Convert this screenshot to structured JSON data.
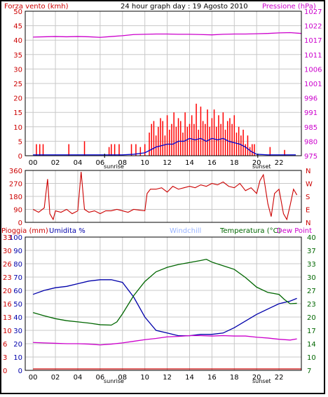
{
  "header": {
    "left_title": "Forza vento (kmh)",
    "center_title": "24 hour graph day : 19 Agosto 2010",
    "right_title": "Pressione (hPa)"
  },
  "markers": {
    "sunrise": "sunrise",
    "sunset": "sunset"
  },
  "colors": {
    "wind": "#ff0000",
    "gust": "#ff0000",
    "wind_avg": "#0000cc",
    "pressure": "#cc00cc",
    "direction": "#cc0000",
    "rain": "#cc0000",
    "humidity": "#0000aa",
    "windchill": "#9ab4ff",
    "temperature": "#006600",
    "dewpoint": "#cc00cc",
    "grid": "#c8c8c8"
  },
  "chart_data": [
    {
      "type": "bar",
      "name": "wind-pressure-panel",
      "title": "24 hour graph day : 19 Agosto 2010",
      "ylabel_left": "Forza vento (kmh)",
      "ylabel_right": "Pressione (hPa)",
      "ylim_left": [
        0,
        50
      ],
      "yticks_left": [
        "0",
        "5",
        "10",
        "15",
        "20",
        "25",
        "30",
        "35",
        "40",
        "45",
        "50"
      ],
      "ylim_right": [
        975,
        1027
      ],
      "yticks_right": [
        "975",
        "980",
        "985",
        "991",
        "996",
        "1001",
        "1006",
        "1011",
        "1017",
        "1022",
        "1027"
      ],
      "x_hours": [
        "00",
        "02",
        "04",
        "06",
        "08",
        "10",
        "12",
        "14",
        "16",
        "18",
        "20",
        "22"
      ],
      "sunrise_hour": 6.4,
      "sunset_hour": 20.1,
      "series": [
        {
          "name": "gust",
          "x": [
            0.3,
            0.6,
            0.9,
            3.2,
            4.6,
            6.8,
            7.0,
            7.3,
            7.7,
            8.8,
            9.2,
            9.6,
            10.0,
            10.4,
            10.6,
            10.8,
            11.0,
            11.2,
            11.4,
            11.6,
            11.8,
            12.0,
            12.2,
            12.4,
            12.6,
            12.8,
            13.0,
            13.2,
            13.4,
            13.6,
            13.8,
            14.0,
            14.2,
            14.4,
            14.6,
            14.8,
            15.0,
            15.2,
            15.4,
            15.6,
            15.8,
            16.0,
            16.2,
            16.4,
            16.6,
            16.8,
            17.0,
            17.2,
            17.4,
            17.6,
            17.8,
            18.0,
            18.2,
            18.4,
            18.6,
            18.8,
            19.0,
            19.2,
            19.4,
            19.6,
            19.8,
            21.2,
            22.5
          ],
          "values": [
            4,
            4,
            4,
            4,
            5,
            3,
            4,
            4,
            4,
            4,
            4,
            3,
            4,
            8,
            11,
            12,
            7,
            10,
            13,
            12,
            7,
            14,
            9,
            11,
            15,
            10,
            13,
            12,
            8,
            15,
            10,
            11,
            14,
            11,
            18,
            9,
            17,
            12,
            11,
            16,
            10,
            13,
            16,
            10,
            14,
            11,
            15,
            9,
            12,
            13,
            11,
            14,
            8,
            10,
            7,
            9,
            4,
            7,
            3,
            4,
            4,
            3,
            2
          ]
        },
        {
          "name": "average",
          "x": [
            0,
            2,
            4,
            6,
            8,
            9,
            10,
            10.5,
            11,
            11.5,
            12,
            12.5,
            13,
            13.5,
            14,
            14.5,
            15,
            15.5,
            16,
            16.5,
            17,
            17.5,
            18,
            18.5,
            19,
            19.5,
            20,
            21,
            22,
            23.5
          ],
          "values": [
            0.3,
            0.3,
            0.3,
            0.3,
            0.3,
            0.5,
            1,
            2,
            3,
            3.5,
            4,
            4,
            5,
            5,
            6,
            5.5,
            6,
            5,
            6,
            5.5,
            6,
            5,
            4.5,
            4,
            3,
            1.5,
            0.5,
            0.3,
            0.3,
            0.3
          ]
        },
        {
          "name": "pressure",
          "x": [
            0,
            1,
            2,
            3,
            4,
            5,
            6,
            7,
            8,
            9,
            10,
            11,
            12,
            13,
            14,
            15,
            16,
            17,
            18,
            19,
            20,
            21,
            22,
            23,
            24
          ],
          "values": [
            1017.7,
            1017.8,
            1017.9,
            1017.8,
            1017.9,
            1017.8,
            1017.6,
            1017.9,
            1018.2,
            1018.6,
            1018.7,
            1018.8,
            1018.8,
            1018.7,
            1018.7,
            1018.6,
            1018.5,
            1018.7,
            1018.8,
            1018.8,
            1018.9,
            1019.0,
            1019.2,
            1019.3,
            1019.0
          ]
        }
      ]
    },
    {
      "type": "line",
      "name": "wind-direction-panel",
      "ylim": [
        0,
        360
      ],
      "yticks_left": [
        "0",
        "90",
        "180",
        "270",
        "360"
      ],
      "yticks_right": [
        "N",
        "E",
        "S",
        "W",
        "N"
      ],
      "series": [
        {
          "name": "direction",
          "x": [
            0,
            0.5,
            1,
            1.3,
            1.5,
            1.8,
            2,
            2.5,
            3,
            3.5,
            4,
            4.3,
            4.6,
            5,
            5.5,
            6,
            6.5,
            7,
            7.5,
            8,
            8.5,
            9,
            9.5,
            10,
            10.2,
            10.5,
            11,
            11.5,
            12,
            12.5,
            13,
            13.5,
            14,
            14.5,
            15,
            15.5,
            16,
            16.5,
            17,
            17.5,
            18,
            18.5,
            19,
            19.5,
            20,
            20.3,
            20.6,
            21,
            21.3,
            21.6,
            22,
            22.4,
            22.7,
            23,
            23.3,
            23.6
          ],
          "values": [
            90,
            70,
            100,
            300,
            60,
            20,
            80,
            70,
            90,
            60,
            80,
            350,
            90,
            70,
            80,
            60,
            80,
            80,
            90,
            80,
            70,
            90,
            85,
            80,
            200,
            230,
            230,
            240,
            210,
            250,
            230,
            240,
            250,
            240,
            260,
            250,
            270,
            260,
            280,
            250,
            240,
            270,
            220,
            240,
            200,
            290,
            330,
            130,
            40,
            200,
            230,
            60,
            20,
            120,
            230,
            190
          ]
        }
      ]
    },
    {
      "type": "line",
      "name": "weather-panel",
      "ylabel_rain": "Pioggia (mm)",
      "ylabel_humidity": "Umidita %",
      "legend": [
        "Windchill",
        "Temperatura (°C)",
        "Dew Point"
      ],
      "ylim_left": [
        0,
        100
      ],
      "yticks_left": [
        "0",
        "10",
        "20",
        "30",
        "40",
        "50",
        "60",
        "70",
        "80",
        "90",
        "100"
      ],
      "yticks_rain": [
        "0",
        "3",
        "6",
        "10",
        "13",
        "16",
        "20",
        "23",
        "26",
        "30",
        "33"
      ],
      "ylim_right": [
        7,
        40
      ],
      "yticks_right": [
        "7",
        "10",
        "14",
        "17",
        "20",
        "23",
        "27",
        "30",
        "33",
        "37",
        "40"
      ],
      "series": [
        {
          "name": "Umidita %",
          "x": [
            0,
            1,
            2,
            3,
            4,
            5,
            6,
            7,
            8,
            9,
            10,
            11,
            12,
            13,
            14,
            15,
            16,
            17,
            18,
            19,
            20,
            21,
            22,
            23,
            23.6
          ],
          "values": [
            57,
            60,
            62,
            63,
            65,
            67,
            68,
            68,
            66,
            55,
            40,
            30,
            28,
            26,
            26,
            27,
            27,
            28,
            32,
            37,
            42,
            46,
            50,
            52,
            54
          ]
        },
        {
          "name": "Temperatura (°C)",
          "x": [
            0,
            1,
            2,
            3,
            4,
            5,
            6,
            7,
            7.5,
            8,
            9,
            10,
            11,
            12,
            13,
            14,
            15,
            15.5,
            16,
            17,
            18,
            19,
            20,
            21,
            22,
            22.5,
            23,
            23.6
          ],
          "values": [
            21.3,
            20.5,
            19.8,
            19.3,
            19.0,
            18.7,
            18.3,
            18.2,
            19.0,
            21.0,
            25.5,
            29.0,
            31.4,
            32.5,
            33.2,
            33.7,
            34.2,
            34.5,
            33.8,
            32.9,
            32.0,
            30.0,
            27.6,
            26.3,
            25.8,
            24.5,
            23.5,
            23.6
          ]
        },
        {
          "name": "Dew Point",
          "x": [
            0,
            1,
            2,
            3,
            4,
            5,
            6,
            7,
            8,
            9,
            10,
            11,
            12,
            13,
            14,
            15,
            16,
            17,
            18,
            19,
            20,
            21,
            22,
            23,
            23.6
          ],
          "values": [
            13.9,
            13.8,
            13.7,
            13.6,
            13.6,
            13.5,
            13.3,
            13.5,
            13.8,
            14.2,
            14.6,
            14.9,
            15.3,
            15.4,
            15.6,
            15.6,
            15.5,
            15.6,
            15.5,
            15.5,
            15.2,
            15.0,
            14.7,
            14.5,
            14.8
          ]
        },
        {
          "name": "Pioggia (mm)",
          "x": [
            0,
            24
          ],
          "values": [
            0,
            0
          ]
        }
      ]
    }
  ]
}
